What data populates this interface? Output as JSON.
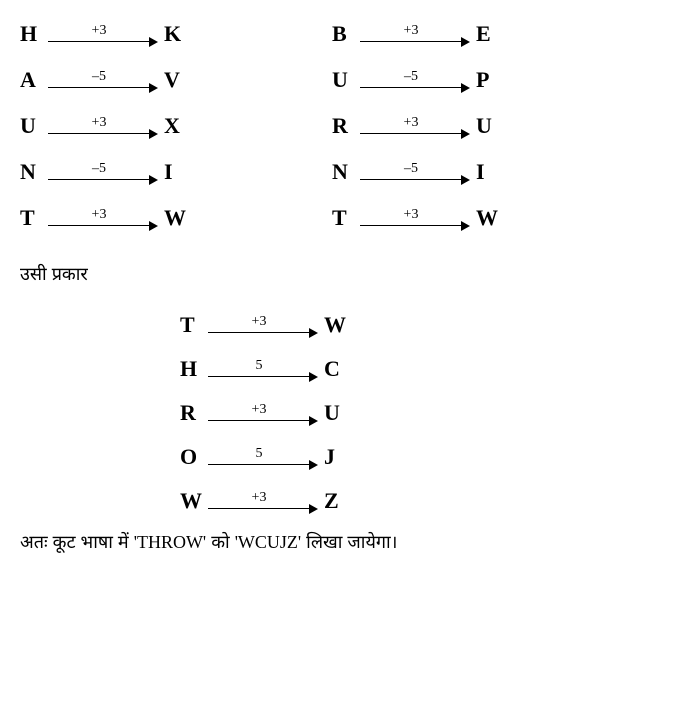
{
  "group1": [
    {
      "from": "H",
      "op": "+3",
      "to": "K"
    },
    {
      "from": "A",
      "op": "–5",
      "to": "V"
    },
    {
      "from": "U",
      "op": "+3",
      "to": "X"
    },
    {
      "from": "N",
      "op": "–5",
      "to": "I"
    },
    {
      "from": "T",
      "op": "+3",
      "to": "W"
    }
  ],
  "group2": [
    {
      "from": "B",
      "op": "+3",
      "to": "E"
    },
    {
      "from": "U",
      "op": "–5",
      "to": "P"
    },
    {
      "from": "R",
      "op": "+3",
      "to": "U"
    },
    {
      "from": "N",
      "op": "–5",
      "to": "I"
    },
    {
      "from": "T",
      "op": "+3",
      "to": "W"
    }
  ],
  "text_similarly": "उसी प्रकार",
  "group3": [
    {
      "from": "T",
      "op": "+3",
      "to": "W"
    },
    {
      "from": "H",
      "op": "5",
      "to": "C"
    },
    {
      "from": "R",
      "op": "+3",
      "to": "U"
    },
    {
      "from": "O",
      "op": "5",
      "to": "J"
    },
    {
      "from": "W",
      "op": "+3",
      "to": "Z"
    }
  ],
  "conclusion_prefix": "अतः कूट भाषा में ",
  "conclusion_word1": "'THROW'",
  "conclusion_mid": " को ",
  "conclusion_word2": "'WCUJZ'",
  "conclusion_suffix": " लिखा जायेगा।"
}
